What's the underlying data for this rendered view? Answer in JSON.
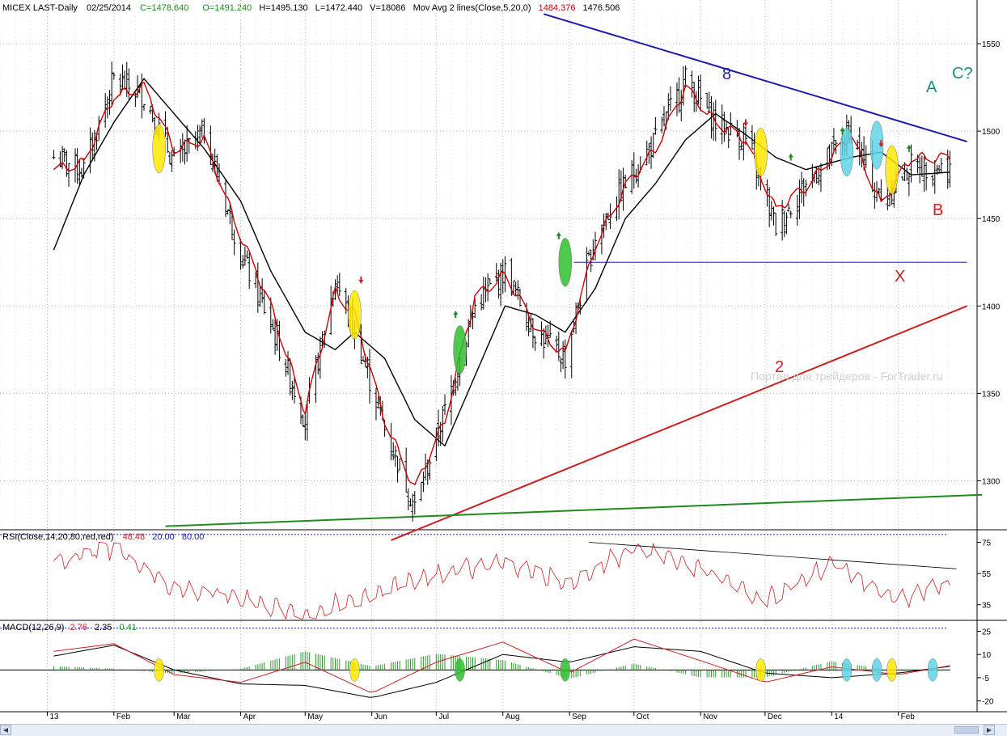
{
  "header": {
    "symbol": "MICEX LAST-Daily",
    "date": "02/25/2014",
    "close_label": "C=1478.640",
    "open_label": "O=1491.240",
    "high_label": "H=1495.130",
    "low_label": "L=1472.440",
    "volume_label": "V=18086",
    "ma_label": "Mov Avg 2 lines(Close,5,20,0)",
    "ma_fast_value": "1484.376",
    "ma_slow_value": "1476.506"
  },
  "rsi_header": {
    "label": "RSI(Close,14,20,80,red,red)",
    "value": "48.48",
    "low": "20.00",
    "high": "80.00"
  },
  "macd_header": {
    "label": "MACD(12,26,9)",
    "macd": "2.76",
    "signal": "2.35",
    "hist": "0.41"
  },
  "watermark": "Портал для трейдеров - ForTrader.ru",
  "annotations": {
    "line8": "8",
    "line2": "2",
    "wave_a": "A",
    "wave_b": "B",
    "wave_c": "C?",
    "wave_x": "X"
  },
  "colors": {
    "price_bar": "#000000",
    "ma_fast": "#cc0000",
    "ma_slow": "#000000",
    "resistance": "#1c1caa",
    "support_red": "#cc2020",
    "support_green": "#1f8a1f",
    "rsi": "#cc2020",
    "hist": "#2a9a2a",
    "grid": "#b8b8b8",
    "wave_ab_color": "#1e8a7a",
    "wave_bx_color": "#cc2020"
  },
  "chart_data": [
    {
      "type": "candlestick",
      "title": "MICEX LAST-Daily",
      "x_ticks": [
        "13",
        "Feb",
        "Mar",
        "Apr",
        "May",
        "Jun",
        "Jul",
        "Aug",
        "Sep",
        "Oct",
        "Nov",
        "Dec",
        "14",
        "Feb"
      ],
      "y_ticks": [
        1300,
        1350,
        1400,
        1450,
        1500,
        1550
      ],
      "ylim": [
        1272,
        1575
      ],
      "grid": true,
      "series": [
        {
          "name": "Close",
          "x": [
            "2013-01-04",
            "2013-01-18",
            "2013-02-01",
            "2013-02-15",
            "2013-03-01",
            "2013-03-15",
            "2013-04-01",
            "2013-04-15",
            "2013-05-01",
            "2013-05-15",
            "2013-05-24",
            "2013-06-07",
            "2013-06-21",
            "2013-07-05",
            "2013-07-19",
            "2013-08-02",
            "2013-08-16",
            "2013-08-30",
            "2013-09-13",
            "2013-09-27",
            "2013-10-11",
            "2013-10-25",
            "2013-11-08",
            "2013-11-22",
            "2013-12-06",
            "2013-12-20",
            "2014-01-10",
            "2014-01-24",
            "2014-02-07",
            "2014-02-25"
          ],
          "values": [
            1485,
            1478,
            1530,
            1520,
            1482,
            1500,
            1430,
            1390,
            1335,
            1415,
            1385,
            1330,
            1285,
            1340,
            1400,
            1420,
            1385,
            1370,
            1440,
            1470,
            1495,
            1530,
            1505,
            1495,
            1445,
            1470,
            1500,
            1460,
            1480,
            1478.64
          ]
        },
        {
          "name": "MA5",
          "x": [
            "2013-01-04",
            "2013-01-18",
            "2013-02-01",
            "2013-02-15",
            "2013-03-01",
            "2013-03-15",
            "2013-04-01",
            "2013-04-15",
            "2013-05-01",
            "2013-05-15",
            "2013-05-24",
            "2013-06-07",
            "2013-06-21",
            "2013-07-05",
            "2013-07-19",
            "2013-08-02",
            "2013-08-16",
            "2013-08-30",
            "2013-09-13",
            "2013-09-27",
            "2013-10-11",
            "2013-10-25",
            "2013-11-08",
            "2013-11-22",
            "2013-12-06",
            "2013-12-20",
            "2014-01-10",
            "2014-01-24",
            "2014-02-07",
            "2014-02-25"
          ],
          "values": [
            1478,
            1482,
            1520,
            1525,
            1490,
            1495,
            1440,
            1400,
            1340,
            1408,
            1395,
            1335,
            1295,
            1335,
            1405,
            1418,
            1388,
            1372,
            1435,
            1468,
            1490,
            1525,
            1505,
            1495,
            1455,
            1468,
            1498,
            1458,
            1485,
            1484.38
          ]
        },
        {
          "name": "MA20",
          "x": [
            "2013-01-04",
            "2013-01-18",
            "2013-02-01",
            "2013-02-15",
            "2013-03-01",
            "2013-03-15",
            "2013-04-01",
            "2013-04-15",
            "2013-05-01",
            "2013-05-15",
            "2013-05-24",
            "2013-06-07",
            "2013-06-21",
            "2013-07-05",
            "2013-07-19",
            "2013-08-02",
            "2013-08-16",
            "2013-08-30",
            "2013-09-13",
            "2013-09-27",
            "2013-10-11",
            "2013-10-25",
            "2013-11-08",
            "2013-11-22",
            "2013-12-06",
            "2013-12-20",
            "2014-01-10",
            "2014-01-24",
            "2014-02-07",
            "2014-02-25"
          ],
          "values": [
            1432,
            1475,
            1505,
            1530,
            1510,
            1490,
            1460,
            1420,
            1385,
            1375,
            1385,
            1370,
            1335,
            1320,
            1360,
            1400,
            1395,
            1385,
            1410,
            1450,
            1470,
            1495,
            1510,
            1498,
            1485,
            1478,
            1485,
            1488,
            1475,
            1476.51
          ]
        }
      ]
    },
    {
      "type": "line",
      "title": "RSI(Close,14,20,80,red,red)",
      "y_ticks": [
        35,
        55,
        75
      ],
      "ylim": [
        25,
        82
      ],
      "series": [
        {
          "name": "RSI",
          "x": [
            "2013-01-04",
            "2013-02-01",
            "2013-03-01",
            "2013-04-01",
            "2013-05-01",
            "2013-06-01",
            "2013-07-01",
            "2013-08-01",
            "2013-09-01",
            "2013-10-01",
            "2013-11-01",
            "2013-12-01",
            "2014-01-01",
            "2014-02-01",
            "2014-02-25"
          ],
          "values": [
            62,
            72,
            45,
            40,
            28,
            42,
            55,
            62,
            48,
            72,
            58,
            38,
            62,
            38,
            48.48
          ]
        }
      ]
    },
    {
      "type": "line",
      "title": "MACD(12,26,9)",
      "y_ticks": [
        -20,
        -5,
        10,
        25
      ],
      "ylim": [
        -27,
        31
      ],
      "series": [
        {
          "name": "MACD",
          "x": [
            "2013-01-04",
            "2013-02-01",
            "2013-03-01",
            "2013-04-01",
            "2013-05-01",
            "2013-06-01",
            "2013-07-01",
            "2013-08-01",
            "2013-09-01",
            "2013-10-01",
            "2013-11-01",
            "2013-12-01",
            "2014-01-01",
            "2014-02-01",
            "2014-02-25"
          ],
          "values": [
            12,
            17,
            -3,
            -8,
            5,
            -15,
            5,
            18,
            -2,
            20,
            6,
            -8,
            2,
            -3,
            2.76
          ]
        },
        {
          "name": "Signal",
          "x": [
            "2013-01-04",
            "2013-02-01",
            "2013-03-01",
            "2013-04-01",
            "2013-05-01",
            "2013-06-01",
            "2013-07-01",
            "2013-08-01",
            "2013-09-01",
            "2013-10-01",
            "2013-11-01",
            "2013-12-01",
            "2014-01-01",
            "2014-02-01",
            "2014-02-25"
          ],
          "values": [
            9,
            16,
            0,
            -9,
            -10,
            -18,
            -8,
            10,
            5,
            15,
            12,
            -2,
            -5,
            -2,
            2.35
          ]
        }
      ]
    }
  ]
}
